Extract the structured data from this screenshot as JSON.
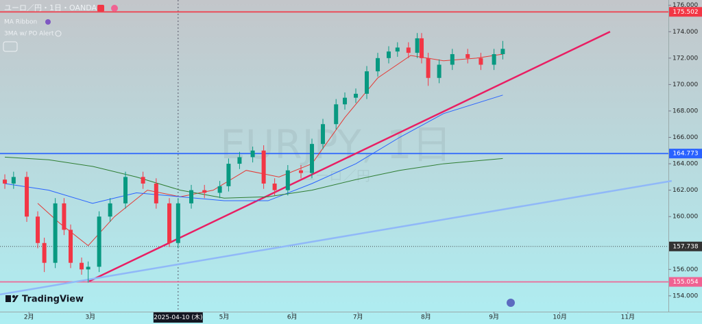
{
  "chart_data": {
    "type": "candlestick",
    "title": "ユーロ／円・1日・OANDA",
    "indicators": [
      "MA Ribbon",
      "3MA w/ PO Alert"
    ],
    "watermark": "EURJPY, 1日",
    "watermark_sub": "ユーロ／円",
    "brand": "TradingView",
    "crosshair": {
      "value": 99,
      "label": "2025-04-10 (木)"
    },
    "up_color": "#089981",
    "down_color": "#f23645",
    "ohlc": {
      "x": [
        20,
        24,
        30,
        35,
        38,
        43,
        47,
        50,
        55,
        58,
        63,
        68,
        75,
        83,
        89,
        95,
        99,
        105,
        111,
        118,
        122,
        127,
        133,
        138,
        143,
        149,
        155,
        160,
        165,
        171,
        175,
        180,
        185,
        190,
        195,
        199,
        204,
        208,
        210,
        213,
        218,
        224,
        231,
        237,
        243,
        247
      ],
      "open": [
        162.8,
        162.5,
        163,
        160,
        158,
        156.5,
        161,
        159,
        156.5,
        156,
        156.2,
        160,
        161,
        163,
        162.5,
        161,
        158,
        161,
        162,
        161.8,
        162.3,
        164,
        164.5,
        165,
        162.5,
        162,
        163.5,
        163.3,
        165.5,
        167,
        168.5,
        169,
        169.3,
        171,
        172,
        172.5,
        172.8,
        172.4,
        173.5,
        172,
        170.5,
        171.5,
        172.3,
        172,
        171.5,
        172.3
      ],
      "high": [
        163.2,
        163.4,
        163.4,
        160.4,
        158.4,
        161.4,
        161.4,
        159.4,
        156.9,
        156.6,
        160.4,
        161.4,
        163.4,
        163.4,
        162.9,
        161.4,
        161.4,
        162.4,
        162.4,
        162.7,
        164.4,
        164.9,
        165.3,
        165.4,
        162.9,
        163.9,
        163.9,
        165.9,
        167.4,
        168.9,
        169.4,
        169.7,
        171.4,
        172.4,
        172.9,
        173.2,
        173.2,
        173.9,
        173.9,
        172.4,
        171.9,
        172.7,
        172.7,
        172.4,
        172.7,
        173.3
      ],
      "low": [
        162.1,
        162.1,
        159.6,
        157.6,
        155.8,
        156.1,
        158.6,
        156.1,
        155.6,
        155.0,
        155.8,
        159.6,
        160.6,
        162.1,
        160.6,
        157.7,
        157.6,
        160.6,
        161.4,
        161.4,
        161.9,
        163.6,
        164.1,
        162.1,
        161.6,
        161.6,
        162.9,
        162.9,
        165.1,
        166.6,
        168.1,
        168.6,
        168.9,
        170.6,
        171.6,
        172.1,
        172.0,
        172.0,
        171.6,
        169.9,
        170.1,
        171.1,
        171.6,
        171.1,
        171.1,
        171.9
      ],
      "close": [
        162.5,
        163,
        160,
        158,
        156.5,
        161,
        159,
        156.5,
        156,
        156.2,
        160,
        161,
        163,
        162.5,
        161,
        158,
        161,
        162,
        161.8,
        162.3,
        164,
        164.5,
        165,
        162.5,
        162,
        163.5,
        163.3,
        165.5,
        167,
        168.5,
        169,
        169.3,
        171,
        172,
        172.5,
        172.8,
        172.4,
        173.5,
        172,
        170.5,
        171.5,
        172.3,
        172,
        171.5,
        172.3,
        172.7
      ]
    },
    "lines": [
      {
        "color": "#e53935",
        "x": [
          35,
          45,
          58,
          70,
          85,
          100,
          115,
          130,
          145,
          160,
          175,
          190,
          205,
          220,
          235,
          247
        ],
        "y": [
          161,
          159.5,
          157.8,
          160,
          162,
          161.5,
          162,
          163.5,
          163,
          164,
          167.5,
          170.5,
          172.2,
          171.8,
          172,
          172.3
        ]
      },
      {
        "color": "#2962ff",
        "x": [
          20,
          40,
          60,
          80,
          100,
          120,
          140,
          160,
          180,
          200,
          220,
          247
        ],
        "y": [
          162.5,
          162,
          161,
          161.8,
          161.5,
          161.2,
          161.2,
          162.5,
          164,
          166,
          167.8,
          169.2
        ]
      },
      {
        "color": "#2e7d32",
        "x": [
          20,
          40,
          60,
          80,
          100,
          120,
          140,
          160,
          180,
          200,
          220,
          247
        ],
        "y": [
          164.5,
          164.3,
          163.8,
          163,
          162,
          161.4,
          161.5,
          162,
          162.8,
          163.5,
          164,
          164.4
        ]
      }
    ],
    "trendlines": [
      {
        "color": "#e91e63",
        "x": [
          58.4,
          295.9
        ],
        "y": [
          155.1,
          174.0
        ]
      },
      {
        "color": "#90b8f8",
        "x": [
          17.8,
          324
        ],
        "y": [
          154.1,
          162.7
        ]
      }
    ],
    "levels": [
      {
        "value": 175.502,
        "color": "#f23645"
      },
      {
        "value": 164.773,
        "color": "#2962ff"
      },
      {
        "value": 157.738,
        "color": "#333333"
      },
      {
        "value": 155.054,
        "color": "#f06292"
      }
    ],
    "xlim": [
      17.8,
      322.5
    ],
    "ylim": [
      152.8,
      176.4
    ],
    "xticks": [
      {
        "value": 31,
        "label": "2月"
      },
      {
        "value": 59,
        "label": "3月"
      },
      {
        "value": 120,
        "label": "5月"
      },
      {
        "value": 151,
        "label": "6月"
      },
      {
        "value": 181,
        "label": "7月"
      },
      {
        "value": 212,
        "label": "8月"
      },
      {
        "value": 243,
        "label": "9月"
      },
      {
        "value": 273,
        "label": "10月"
      },
      {
        "value": 304,
        "label": "11月"
      }
    ],
    "yticks": [
      {
        "value": 154,
        "label": "154.000"
      },
      {
        "value": 156,
        "label": "156.000"
      },
      {
        "value": 160,
        "label": "160.000"
      },
      {
        "value": 162,
        "label": "162.000"
      },
      {
        "value": 164,
        "label": "164.000"
      },
      {
        "value": 166,
        "label": "166.000"
      },
      {
        "value": 168,
        "label": "168.000"
      },
      {
        "value": 170,
        "label": "170.000"
      },
      {
        "value": 172,
        "label": "172.000"
      },
      {
        "value": 174,
        "label": "174.000"
      },
      {
        "value": 176,
        "label": "176.000"
      }
    ]
  }
}
